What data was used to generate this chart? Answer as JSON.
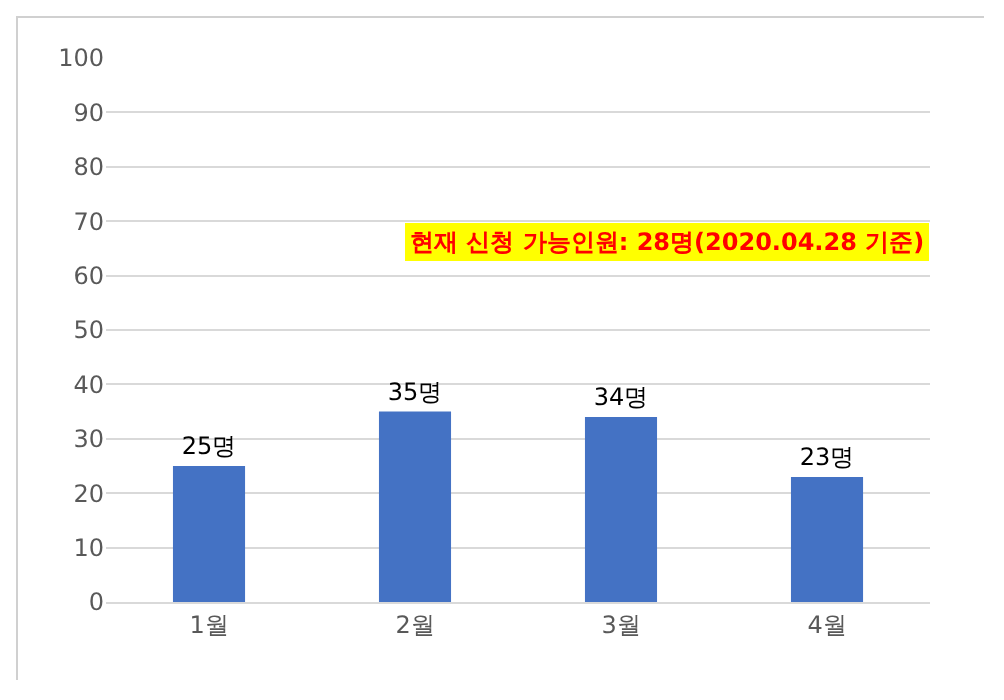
{
  "chart_data": {
    "type": "bar",
    "categories": [
      "1월",
      "2월",
      "3월",
      "4월"
    ],
    "values": [
      25,
      35,
      34,
      23
    ],
    "value_labels": [
      "25명",
      "35명",
      "34명",
      "23명"
    ],
    "color": "#4472c4",
    "ylim": [
      0,
      100
    ],
    "yticks": [
      0,
      10,
      20,
      30,
      40,
      50,
      60,
      70,
      80,
      90,
      100
    ],
    "grid": "y",
    "annotations": [
      "현재 신청 가능인원: 28명(2020.04.28 기준)"
    ]
  }
}
